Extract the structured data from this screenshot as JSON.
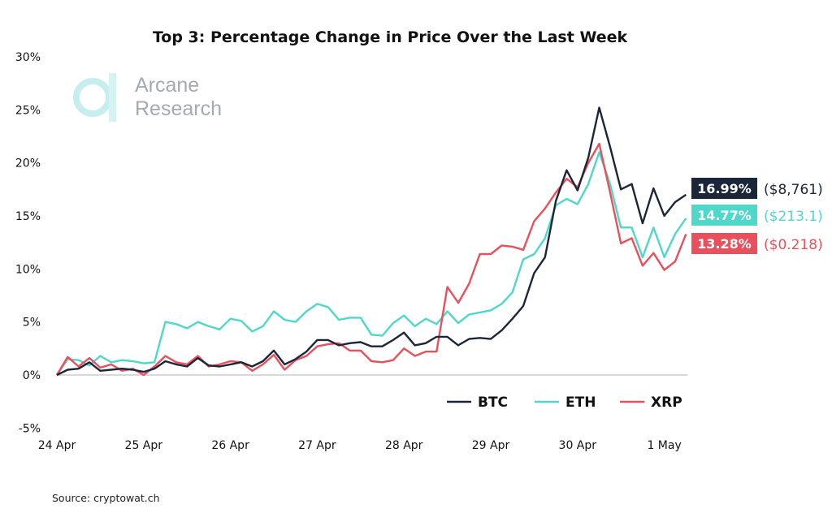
{
  "chart_data": {
    "type": "line",
    "title": "Top 3: Percentage Change in Price Over the Last Week",
    "xlabel": "",
    "ylabel": "",
    "ylim": [
      -5,
      30
    ],
    "yticks": [
      "-5%",
      "0%",
      "5%",
      "10%",
      "15%",
      "20%",
      "25%",
      "30%"
    ],
    "xticks": [
      "24 Apr",
      "25 Apr",
      "26 Apr",
      "27 Apr",
      "28 Apr",
      "29 Apr",
      "30 Apr",
      "1 May"
    ],
    "grid": false,
    "zero_line": true,
    "legend_placement": "bottom-right",
    "x": [
      "24 Apr 00:00",
      "24 Apr 03:00",
      "24 Apr 06:00",
      "24 Apr 09:00",
      "24 Apr 12:00",
      "24 Apr 15:00",
      "24 Apr 18:00",
      "24 Apr 21:00",
      "25 Apr 00:00",
      "25 Apr 03:00",
      "25 Apr 06:00",
      "25 Apr 09:00",
      "25 Apr 12:00",
      "25 Apr 15:00",
      "25 Apr 18:00",
      "25 Apr 21:00",
      "26 Apr 00:00",
      "26 Apr 03:00",
      "26 Apr 06:00",
      "26 Apr 09:00",
      "26 Apr 12:00",
      "26 Apr 15:00",
      "26 Apr 18:00",
      "26 Apr 21:00",
      "27 Apr 00:00",
      "27 Apr 03:00",
      "27 Apr 06:00",
      "27 Apr 09:00",
      "27 Apr 12:00",
      "27 Apr 15:00",
      "27 Apr 18:00",
      "27 Apr 21:00",
      "28 Apr 00:00",
      "28 Apr 03:00",
      "28 Apr 06:00",
      "28 Apr 09:00",
      "28 Apr 12:00",
      "28 Apr 15:00",
      "28 Apr 18:00",
      "28 Apr 21:00",
      "29 Apr 00:00",
      "29 Apr 03:00",
      "29 Apr 06:00",
      "29 Apr 09:00",
      "29 Apr 12:00",
      "29 Apr 15:00",
      "29 Apr 18:00",
      "29 Apr 21:00",
      "30 Apr 00:00",
      "30 Apr 03:00",
      "30 Apr 06:00",
      "30 Apr 09:00",
      "30 Apr 12:00",
      "30 Apr 15:00",
      "30 Apr 18:00",
      "30 Apr 21:00",
      "1 May 00:00",
      "1 May 03:00",
      "1 May 06:00"
    ],
    "series": [
      {
        "name": "BTC",
        "color": "#1b2639",
        "last_label": "16.99%",
        "price": "($8,761)",
        "values": [
          0,
          0.5,
          0.6,
          1.2,
          0.4,
          0.5,
          0.6,
          0.5,
          0.3,
          0.6,
          1.3,
          1.0,
          0.8,
          1.6,
          0.9,
          0.8,
          1.0,
          1.2,
          0.8,
          1.3,
          2.3,
          1.0,
          1.5,
          2.2,
          3.3,
          3.3,
          2.8,
          3.0,
          3.1,
          2.7,
          2.7,
          3.3,
          4.0,
          2.8,
          3.0,
          3.6,
          3.6,
          2.8,
          3.4,
          3.5,
          3.4,
          4.2,
          5.3,
          6.5,
          9.6,
          11.1,
          16.4,
          19.3,
          17.4,
          20.5,
          25.2,
          21.5,
          17.5,
          18.0,
          14.3,
          17.6,
          15.0,
          16.3,
          16.99
        ]
      },
      {
        "name": "ETH",
        "color": "#4fd8c9",
        "last_label": "14.77%",
        "price": "($213.1)",
        "values": [
          0,
          1.5,
          1.4,
          0.9,
          1.8,
          1.2,
          1.4,
          1.3,
          1.1,
          1.2,
          5.0,
          4.8,
          4.4,
          5.0,
          4.6,
          4.3,
          5.3,
          5.1,
          4.1,
          4.6,
          6.0,
          5.2,
          5.0,
          6.0,
          6.7,
          6.4,
          5.2,
          5.4,
          5.4,
          3.8,
          3.7,
          4.9,
          5.6,
          4.6,
          5.3,
          4.8,
          6.0,
          4.9,
          5.7,
          5.9,
          6.1,
          6.7,
          7.8,
          10.9,
          11.4,
          12.9,
          16.0,
          16.6,
          16.1,
          18.0,
          21.0,
          18.0,
          13.9,
          13.9,
          11.1,
          13.9,
          11.1,
          13.3,
          14.77
        ]
      },
      {
        "name": "XRP",
        "color": "#e9505c",
        "last_label": "13.28%",
        "price": "($0.218)",
        "values": [
          0,
          1.7,
          0.8,
          1.6,
          0.7,
          1.0,
          0.4,
          0.6,
          0.0,
          0.8,
          1.8,
          1.2,
          1.0,
          1.8,
          0.8,
          1.0,
          1.3,
          1.2,
          0.4,
          1.0,
          1.9,
          0.5,
          1.4,
          1.8,
          2.7,
          2.9,
          3.0,
          2.3,
          2.3,
          1.3,
          1.2,
          1.4,
          2.5,
          1.8,
          2.2,
          2.2,
          8.3,
          6.8,
          8.6,
          11.4,
          11.4,
          12.2,
          12.1,
          11.8,
          14.5,
          15.7,
          17.2,
          18.5,
          17.7,
          20.0,
          21.8,
          17.2,
          12.4,
          12.9,
          10.3,
          11.5,
          9.9,
          10.7,
          13.28
        ]
      }
    ]
  },
  "logo": {
    "line1": "Arcane",
    "line2": "Research"
  },
  "source": "Source: cryptowat.ch"
}
